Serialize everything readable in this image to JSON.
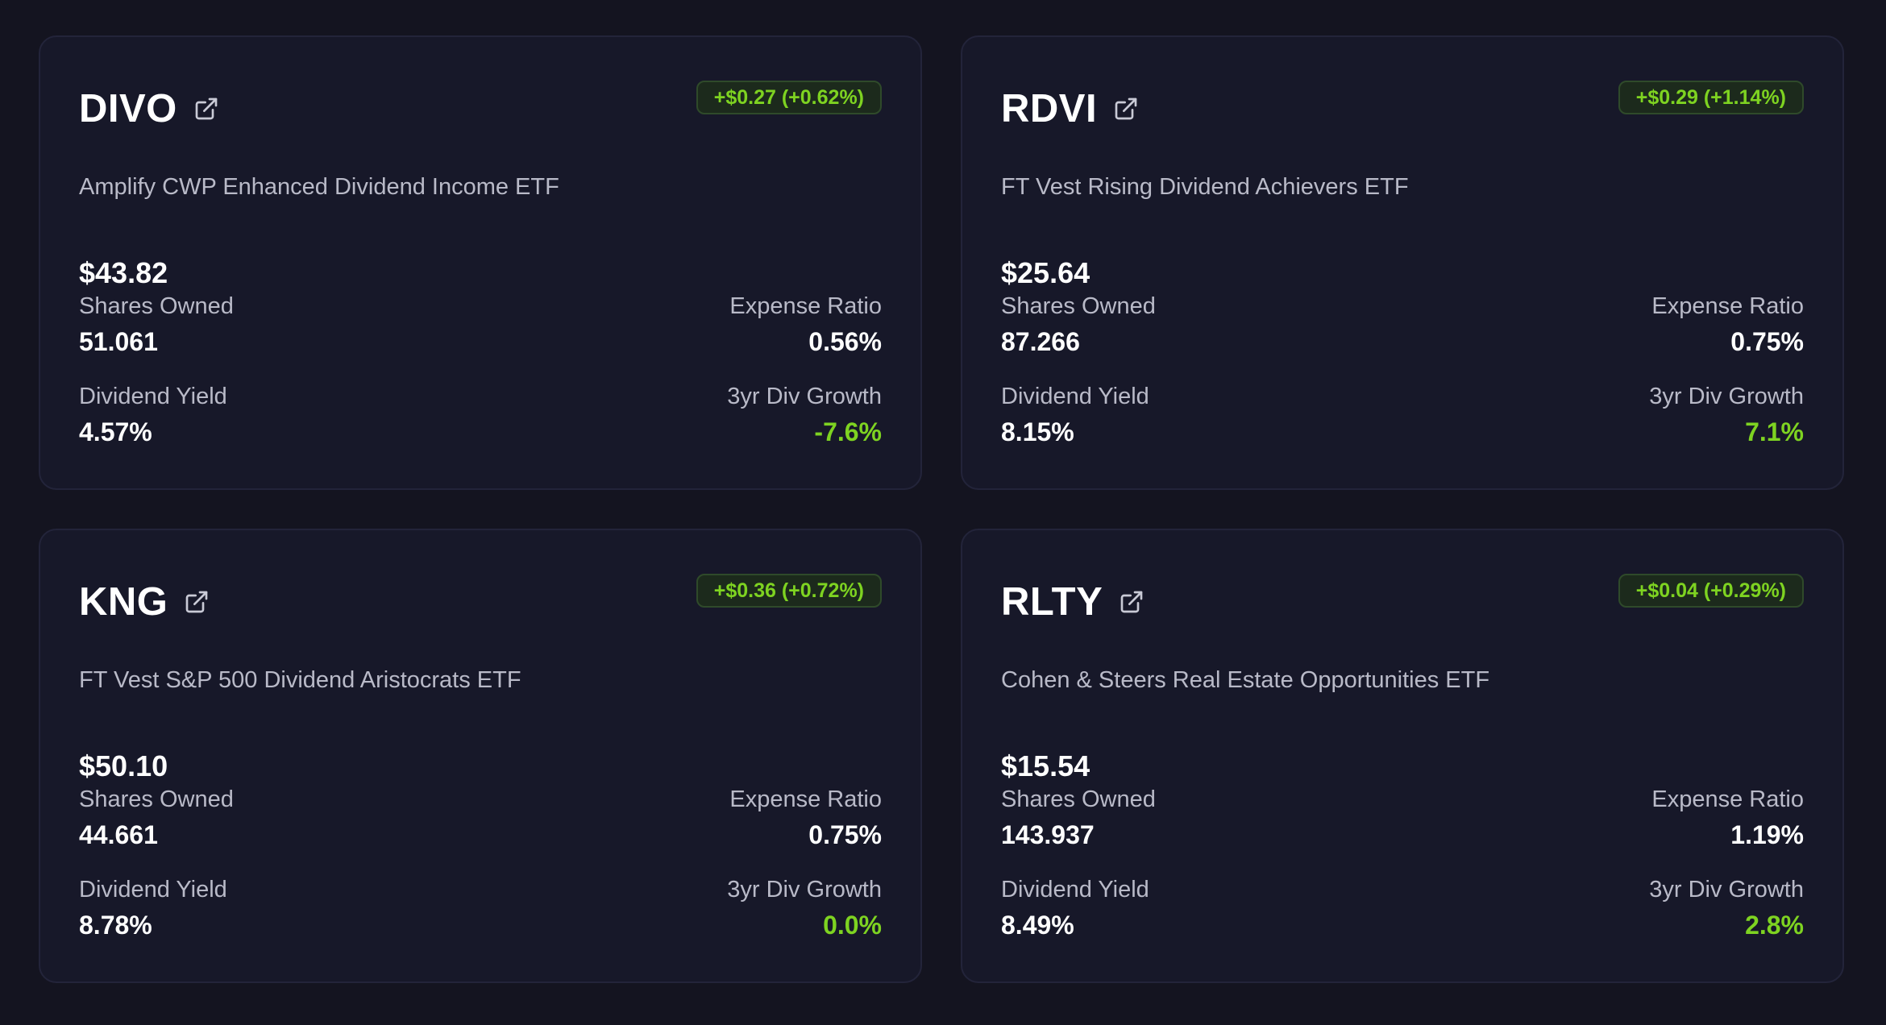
{
  "cards": [
    {
      "ticker": "DIVO",
      "change": "+$0.27 (+0.62%)",
      "name": "Amplify CWP Enhanced Dividend Income ETF",
      "price": "$43.82",
      "shares_label": "Shares Owned",
      "shares": "51.061",
      "expense_label": "Expense Ratio",
      "expense": "0.56%",
      "yield_label": "Dividend Yield",
      "yield": "4.57%",
      "growth_label": "3yr Div Growth",
      "growth": "-7.6%"
    },
    {
      "ticker": "RDVI",
      "change": "+$0.29 (+1.14%)",
      "name": "FT Vest Rising Dividend Achievers ETF",
      "price": "$25.64",
      "shares_label": "Shares Owned",
      "shares": "87.266",
      "expense_label": "Expense Ratio",
      "expense": "0.75%",
      "yield_label": "Dividend Yield",
      "yield": "8.15%",
      "growth_label": "3yr Div Growth",
      "growth": "7.1%"
    },
    {
      "ticker": "KNG",
      "change": "+$0.36 (+0.72%)",
      "name": "FT Vest S&P 500 Dividend Aristocrats ETF",
      "price": "$50.10",
      "shares_label": "Shares Owned",
      "shares": "44.661",
      "expense_label": "Expense Ratio",
      "expense": "0.75%",
      "yield_label": "Dividend Yield",
      "yield": "8.78%",
      "growth_label": "3yr Div Growth",
      "growth": "0.0%"
    },
    {
      "ticker": "RLTY",
      "change": "+$0.04 (+0.29%)",
      "name": "Cohen & Steers Real Estate Opportunities ETF",
      "price": "$15.54",
      "shares_label": "Shares Owned",
      "shares": "143.937",
      "expense_label": "Expense Ratio",
      "expense": "1.19%",
      "yield_label": "Dividend Yield",
      "yield": "8.49%",
      "growth_label": "3yr Div Growth",
      "growth": "2.8%"
    }
  ],
  "icons": {
    "external_link": "external-link-icon"
  },
  "colors": {
    "positive": "#7ed321",
    "background": "#141420",
    "card": "#171829"
  }
}
